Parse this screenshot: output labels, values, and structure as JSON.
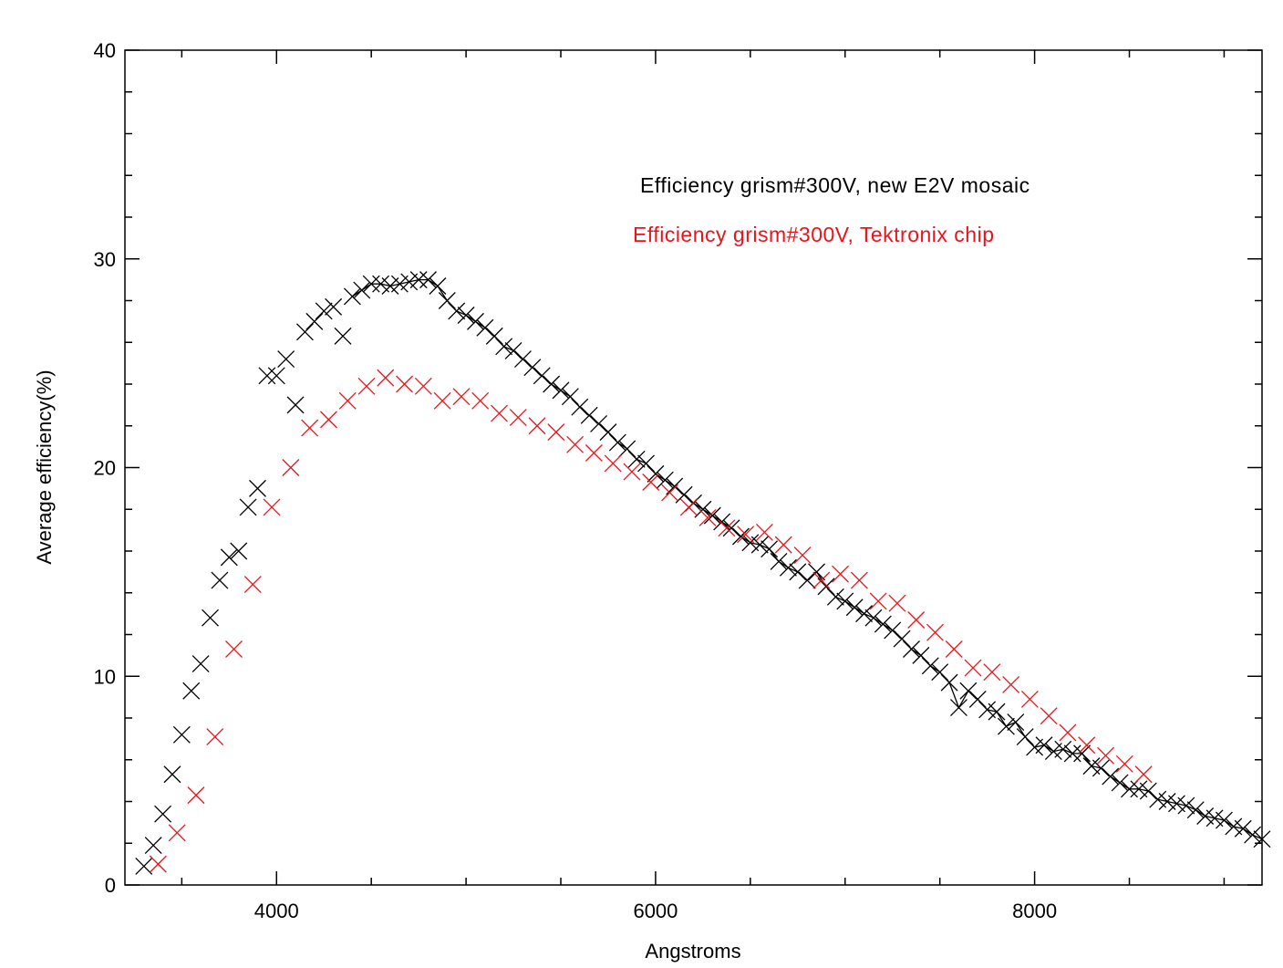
{
  "chart_data": {
    "type": "scatter",
    "title": "",
    "xlabel": "Angstroms",
    "ylabel": "Average efficiency(%)",
    "xlim": [
      3200,
      9200
    ],
    "ylim": [
      0,
      40
    ],
    "xticks": [
      4000,
      6000,
      8000
    ],
    "xtick_labels": [
      "4000",
      "6000",
      "8000"
    ],
    "x_minor_step": 500,
    "yticks": [
      0,
      10,
      20,
      30,
      40
    ],
    "ytick_labels": [
      "0",
      "10",
      "20",
      "30",
      "40"
    ],
    "y_minor_step": 2,
    "grid": false,
    "legend_placement": "top-right",
    "series": [
      {
        "name": "Efficiency grism#300V, new E2V mosaic",
        "color": "#000000",
        "marker": "x",
        "x_start": 3300,
        "x_step": 50,
        "values": [
          0.9,
          1.9,
          3.4,
          5.3,
          7.2,
          9.3,
          10.6,
          12.8,
          14.6,
          15.7,
          16.0,
          18.1,
          19.0,
          24.4,
          24.4,
          25.2,
          23.0,
          26.5,
          27.0,
          27.5,
          27.7,
          26.3,
          28.2,
          28.5,
          28.8,
          28.8,
          28.7,
          28.8,
          28.9,
          29.0,
          29.0,
          28.7,
          28.0,
          27.5,
          27.3,
          27.0,
          26.7,
          26.3,
          25.8,
          25.6,
          25.2,
          24.8,
          24.4,
          24.0,
          23.7,
          23.4,
          22.9,
          22.5,
          22.1,
          21.7,
          21.2,
          20.9,
          20.4,
          20.2,
          19.7,
          19.4,
          19.1,
          18.7,
          18.3,
          18.0,
          17.7,
          17.4,
          17.1,
          16.7,
          16.4,
          16.3,
          16.1,
          15.5,
          15.2,
          15.0,
          14.6,
          15.0,
          14.3,
          13.8,
          13.6,
          13.3,
          13.0,
          12.8,
          12.5,
          12.2,
          11.8,
          11.3,
          11.0,
          10.5,
          10.2,
          9.7,
          8.5,
          9.3,
          8.9,
          8.4,
          8.3,
          7.6,
          7.8,
          7.1,
          6.6,
          6.7,
          6.4,
          6.5,
          6.3,
          6.3,
          5.7,
          5.6,
          5.2,
          4.9,
          4.6,
          4.6,
          4.5,
          4.1,
          4.0,
          3.9,
          3.8,
          3.6,
          3.3,
          3.2,
          3.1,
          2.8,
          2.7,
          2.4,
          2.2
        ],
        "line_from_x": 4400
      },
      {
        "name": "Efficiency grism#300V, Tektronix chip",
        "color": "#e8141b",
        "marker": "x",
        "x_start": 3375,
        "x_step": 100,
        "values": [
          1.0,
          2.5,
          4.3,
          7.1,
          11.3,
          14.4,
          18.1,
          20.0,
          21.9,
          22.3,
          23.2,
          23.9,
          24.3,
          24.0,
          23.9,
          23.2,
          23.4,
          23.2,
          22.6,
          22.4,
          22.0,
          21.7,
          21.1,
          20.7,
          20.2,
          19.8,
          19.3,
          18.8,
          18.1,
          17.6,
          17.1,
          16.8,
          16.9,
          16.3,
          15.8,
          14.6,
          14.9,
          14.6,
          13.6,
          13.5,
          12.7,
          12.1,
          11.3,
          10.4,
          10.2,
          9.6,
          8.9,
          8.1,
          7.3,
          6.7,
          6.2,
          5.8,
          5.3
        ]
      }
    ]
  }
}
